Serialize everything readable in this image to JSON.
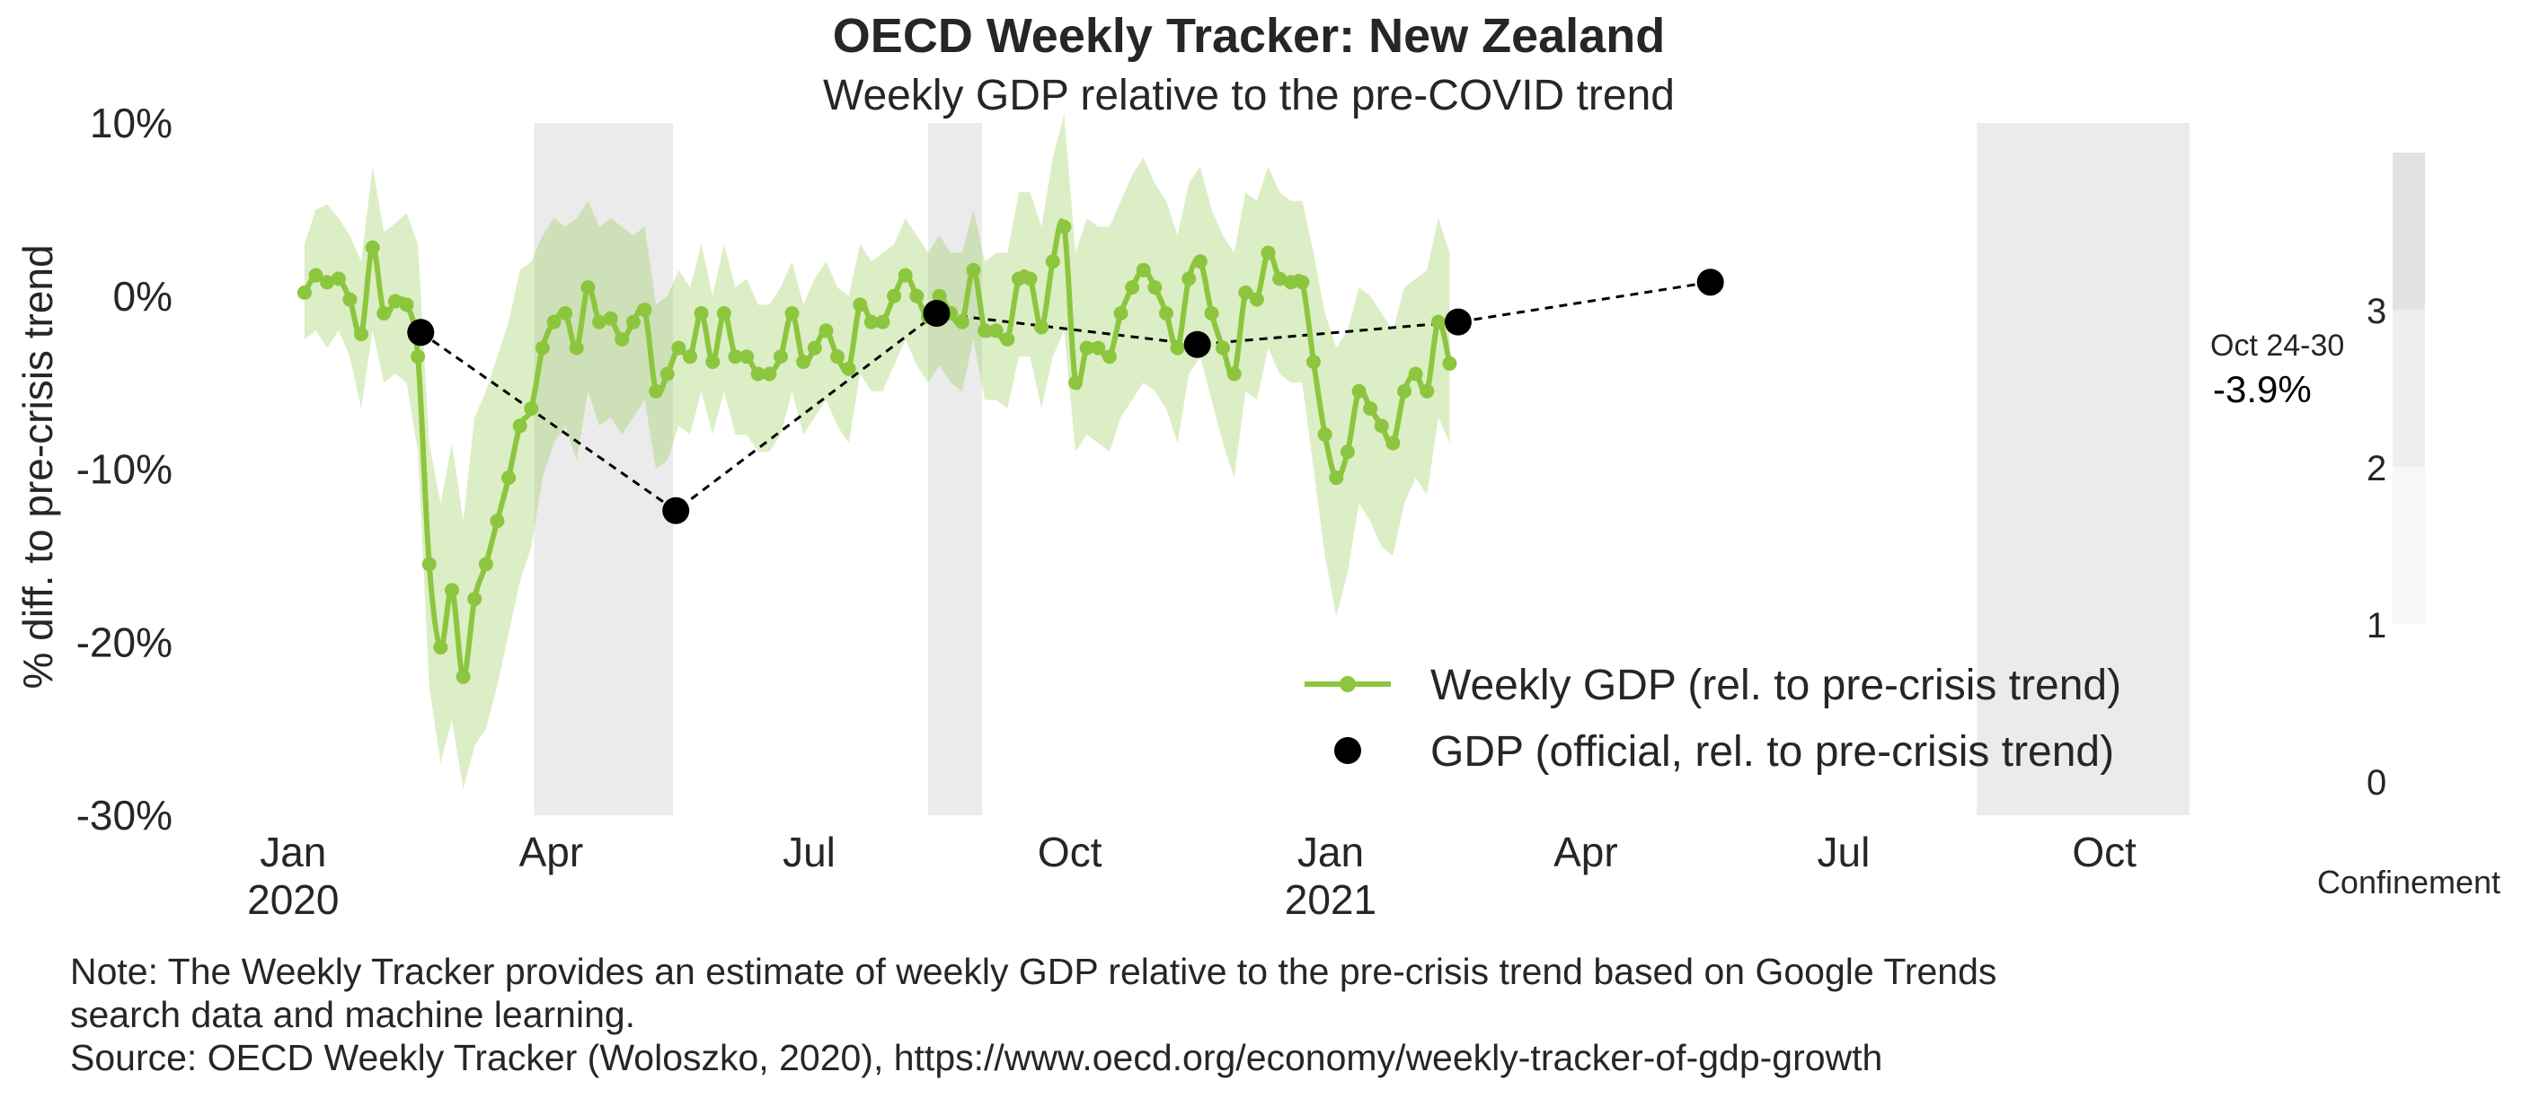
{
  "header": {
    "title": "OECD Weekly Tracker: New Zealand",
    "subtitle": "Weekly GDP relative to the pre-COVID trend"
  },
  "colors": {
    "line": "#8CC63F",
    "band": "#8CC63F",
    "official": "#000000",
    "shade": "#EBEBEB"
  },
  "chart_data": {
    "type": "line",
    "ylabel": "% diff. to pre-crisis trend",
    "xlabel": "",
    "ylim": [
      -30,
      10
    ],
    "xlim": [
      "2019-12-30",
      "2021-11-01"
    ],
    "y_ticks": [
      {
        "value": 10,
        "label": "10%"
      },
      {
        "value": 0,
        "label": "0%"
      },
      {
        "value": -10,
        "label": "-10%"
      },
      {
        "value": -20,
        "label": "-20%"
      },
      {
        "value": -30,
        "label": "-30%"
      }
    ],
    "x_ticks": [
      {
        "date": "2020-01-01",
        "label": "Jan",
        "sub": "2020"
      },
      {
        "date": "2020-04-01",
        "label": "Apr",
        "sub": ""
      },
      {
        "date": "2020-07-01",
        "label": "Jul",
        "sub": ""
      },
      {
        "date": "2020-10-01",
        "label": "Oct",
        "sub": ""
      },
      {
        "date": "2021-01-01",
        "label": "Jan",
        "sub": "2021"
      },
      {
        "date": "2021-04-01",
        "label": "Apr",
        "sub": ""
      },
      {
        "date": "2021-07-01",
        "label": "Jul",
        "sub": ""
      },
      {
        "date": "2021-10-01",
        "label": "Oct",
        "sub": ""
      }
    ],
    "confinement_periods": [
      {
        "start": "2020-03-26",
        "end": "2020-05-14",
        "level": 3
      },
      {
        "start": "2020-08-12",
        "end": "2020-08-31",
        "level": 3
      },
      {
        "start": "2021-08-17",
        "end": "2021-10-31",
        "level": 3
      }
    ],
    "weekly": {
      "name": "Weekly GDP (rel. to pre-crisis trend)",
      "start_date": "2020-01-05",
      "interval_days": 4,
      "values": [
        0.2,
        1.2,
        0.8,
        1.0,
        -0.2,
        -2.2,
        2.8,
        -1.0,
        -0.3,
        -0.5,
        -3.5,
        -15.5,
        -20.3,
        -17.0,
        -22.0,
        -17.5,
        -15.5,
        -13.0,
        -10.5,
        -7.5,
        -6.5,
        -3.0,
        -1.5,
        -1.0,
        -3.0,
        0.5,
        -1.5,
        -1.3,
        -2.5,
        -1.5,
        -0.8,
        -5.5,
        -4.5,
        -3.0,
        -3.5,
        -1.0,
        -3.8,
        -1.0,
        -3.5,
        -3.5,
        -4.5,
        -4.5,
        -3.5,
        -1.0,
        -3.8,
        -3.0,
        -2.0,
        -3.5,
        -4.2,
        -0.5,
        -1.5,
        -1.5,
        0.0,
        1.2,
        0.0,
        -1.2,
        0.0,
        -1.0,
        -1.5,
        1.5,
        -2.0,
        -2.0,
        -2.5,
        1.0,
        1.0,
        -1.8,
        2.0,
        4.0,
        -5.0,
        -3.0,
        -3.0,
        -3.5,
        -1.0,
        0.5,
        1.5,
        0.5,
        -1.0,
        -3.0,
        1.0,
        2.0,
        -1.0,
        -3.0,
        -4.5,
        0.2,
        -0.2,
        2.5,
        1.0,
        0.8,
        0.8,
        -3.8,
        -8.0,
        -10.5,
        -9.0,
        -5.5,
        -6.5,
        -7.5,
        -8.5,
        -5.5,
        -4.5,
        -5.5,
        -1.5,
        -3.9
      ],
      "upper": [
        3.0,
        5.0,
        5.3,
        4.5,
        3.5,
        2.0,
        7.5,
        3.7,
        4.2,
        4.8,
        3.0,
        -8.5,
        -12.0,
        -8.5,
        -13.0,
        -7.0,
        -5.5,
        -3.5,
        -1.5,
        1.5,
        2.0,
        3.5,
        4.5,
        4.0,
        4.5,
        5.5,
        4.0,
        4.5,
        4.0,
        3.5,
        4.0,
        -0.5,
        0.0,
        1.5,
        0.5,
        3.0,
        0.0,
        3.0,
        0.5,
        1.0,
        -0.5,
        -0.5,
        0.5,
        2.0,
        -0.5,
        1.0,
        2.0,
        0.5,
        0.0,
        3.0,
        2.0,
        2.5,
        3.0,
        4.5,
        3.5,
        2.5,
        3.5,
        2.5,
        2.5,
        5.0,
        2.0,
        2.5,
        2.5,
        6.0,
        6.0,
        4.0,
        8.0,
        10.5,
        2.5,
        4.5,
        4.0,
        4.0,
        5.5,
        7.0,
        8.0,
        6.5,
        5.5,
        3.5,
        6.5,
        7.5,
        5.0,
        3.5,
        2.5,
        6.0,
        5.5,
        7.5,
        6.0,
        5.5,
        5.5,
        2.5,
        -1.0,
        -3.0,
        -2.0,
        0.5,
        0.0,
        -1.0,
        -2.0,
        0.5,
        1.0,
        1.5,
        4.5,
        2.5
      ],
      "lower": [
        -2.5,
        -2.0,
        -3.0,
        -2.0,
        -3.5,
        -6.5,
        -2.0,
        -5.0,
        -4.5,
        -5.0,
        -9.0,
        -22.5,
        -27.0,
        -24.5,
        -28.5,
        -26.0,
        -25.0,
        -22.5,
        -19.5,
        -16.5,
        -14.5,
        -10.5,
        -8.5,
        -7.5,
        -9.5,
        -5.5,
        -7.5,
        -7.0,
        -8.0,
        -7.0,
        -6.0,
        -10.0,
        -9.5,
        -7.5,
        -8.0,
        -5.5,
        -8.0,
        -5.5,
        -8.0,
        -8.0,
        -9.0,
        -9.0,
        -8.0,
        -5.5,
        -8.0,
        -7.0,
        -6.0,
        -7.5,
        -8.5,
        -4.5,
        -5.5,
        -5.5,
        -4.0,
        -2.5,
        -4.0,
        -5.0,
        -4.0,
        -5.0,
        -5.5,
        -2.5,
        -6.0,
        -6.0,
        -6.5,
        -3.5,
        -3.5,
        -6.5,
        -3.5,
        -2.0,
        -9.0,
        -8.0,
        -8.5,
        -9.0,
        -7.0,
        -6.0,
        -5.0,
        -5.5,
        -6.5,
        -8.5,
        -4.5,
        -3.5,
        -6.0,
        -8.5,
        -10.5,
        -5.5,
        -6.0,
        -3.0,
        -4.5,
        -5.0,
        -5.0,
        -10.0,
        -15.0,
        -18.5,
        -16.0,
        -12.0,
        -13.0,
        -14.5,
        -15.0,
        -12.0,
        -10.5,
        -11.5,
        -7.0,
        -8.5
      ]
    },
    "official": {
      "name": "GDP (official, rel. to pre-crisis trend)",
      "points": [
        {
          "date": "2020-02-15",
          "value": -2.1
        },
        {
          "date": "2020-05-15",
          "value": -12.4
        },
        {
          "date": "2020-08-15",
          "value": -1.0
        },
        {
          "date": "2020-11-15",
          "value": -2.8
        },
        {
          "date": "2021-02-15",
          "value": -1.5
        },
        {
          "date": "2021-05-15",
          "value": 0.8
        }
      ]
    },
    "annotation": {
      "date_label": "Oct 24-30",
      "value_label": "-3.9%"
    },
    "colorbar": {
      "label": "Confinement",
      "ticks": [
        "0",
        "1",
        "2",
        "3"
      ],
      "bands": [
        {
          "level": 1,
          "color": "#F7F7F7"
        },
        {
          "level": 2,
          "color": "#EFEFEF"
        },
        {
          "level": 3,
          "color": "#E2E2E2"
        }
      ]
    },
    "legend_position": "lower-right",
    "grid": false
  },
  "notes": {
    "line1": "Note: The Weekly Tracker provides an estimate of weekly GDP relative to the pre-crisis trend based on Google Trends",
    "line2": "search data and machine learning.",
    "line3": "Source: OECD Weekly Tracker (Woloszko, 2020), https://www.oecd.org/economy/weekly-tracker-of-gdp-growth"
  }
}
